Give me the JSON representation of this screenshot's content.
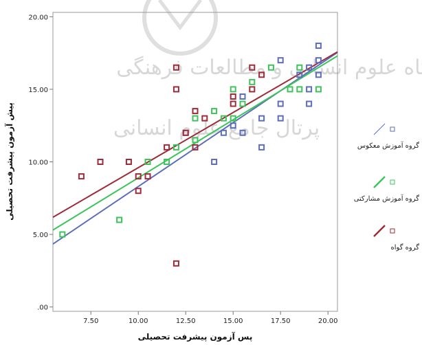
{
  "chart_data": {
    "type": "scatter",
    "title": "",
    "xlabel": "پس آزمون پیشرفت تحصیلی",
    "ylabel": "پیش آزمون پیشرفت تحصیلی",
    "xlim": [
      5.5,
      20.5
    ],
    "ylim": [
      -0.3,
      20.3
    ],
    "x_ticks": [
      7.5,
      10,
      12.5,
      15,
      17.5,
      20
    ],
    "x_tick_labels": [
      "7.50",
      "10.00",
      "12.50",
      "15.00",
      "17.50",
      "20.00"
    ],
    "y_ticks": [
      0,
      5,
      10,
      15,
      20
    ],
    "y_tick_labels": [
      ".00",
      "5.00",
      "10.00",
      "15.00",
      "20.00"
    ],
    "grid": false,
    "legend_position": "right",
    "series": [
      {
        "name": "گروه آموزش معکوس",
        "color": "#5b6dbb",
        "points": [
          [
            12.5,
            12
          ],
          [
            14,
            10
          ],
          [
            14.5,
            12
          ],
          [
            15,
            12.5
          ],
          [
            15.5,
            12
          ],
          [
            15.5,
            14.5
          ],
          [
            16.5,
            11
          ],
          [
            16.5,
            13
          ],
          [
            17.5,
            13
          ],
          [
            17.5,
            14
          ],
          [
            17.5,
            17
          ],
          [
            18.5,
            16
          ],
          [
            19,
            14
          ],
          [
            19,
            15
          ],
          [
            19,
            16.5
          ],
          [
            19.5,
            16
          ],
          [
            19.5,
            17
          ],
          [
            19.5,
            18
          ]
        ],
        "fit": {
          "intercept": -0.5,
          "slope": 0.88
        }
      },
      {
        "name": "گروه آموزش مشارکتی",
        "color": "#3cc45a",
        "points": [
          [
            6,
            5
          ],
          [
            9,
            6
          ],
          [
            10.5,
            10
          ],
          [
            11.5,
            10
          ],
          [
            12,
            11
          ],
          [
            13,
            11.5
          ],
          [
            13,
            13
          ],
          [
            14,
            13.5
          ],
          [
            14.5,
            13
          ],
          [
            15,
            13
          ],
          [
            15,
            15
          ],
          [
            15.5,
            14
          ],
          [
            16,
            15.5
          ],
          [
            17,
            16.5
          ],
          [
            18,
            15
          ],
          [
            18.5,
            15
          ],
          [
            18.5,
            16.5
          ],
          [
            19.5,
            15
          ]
        ],
        "fit": {
          "intercept": 0.9,
          "slope": 0.8
        }
      },
      {
        "name": "گروه گواه",
        "color": "#a02a37",
        "points": [
          [
            7,
            9
          ],
          [
            8,
            10
          ],
          [
            9.5,
            10
          ],
          [
            10,
            8
          ],
          [
            10,
            9
          ],
          [
            10.5,
            9
          ],
          [
            11.5,
            11
          ],
          [
            12,
            3
          ],
          [
            12,
            15
          ],
          [
            12,
            16.5
          ],
          [
            12.5,
            12
          ],
          [
            13,
            11
          ],
          [
            13,
            13.5
          ],
          [
            13.5,
            13
          ],
          [
            15,
            14
          ],
          [
            15,
            14.5
          ],
          [
            16,
            15
          ],
          [
            16,
            16.5
          ],
          [
            16.5,
            16
          ]
        ],
        "fit": {
          "intercept": 2.0,
          "slope": 0.76
        }
      }
    ]
  }
}
